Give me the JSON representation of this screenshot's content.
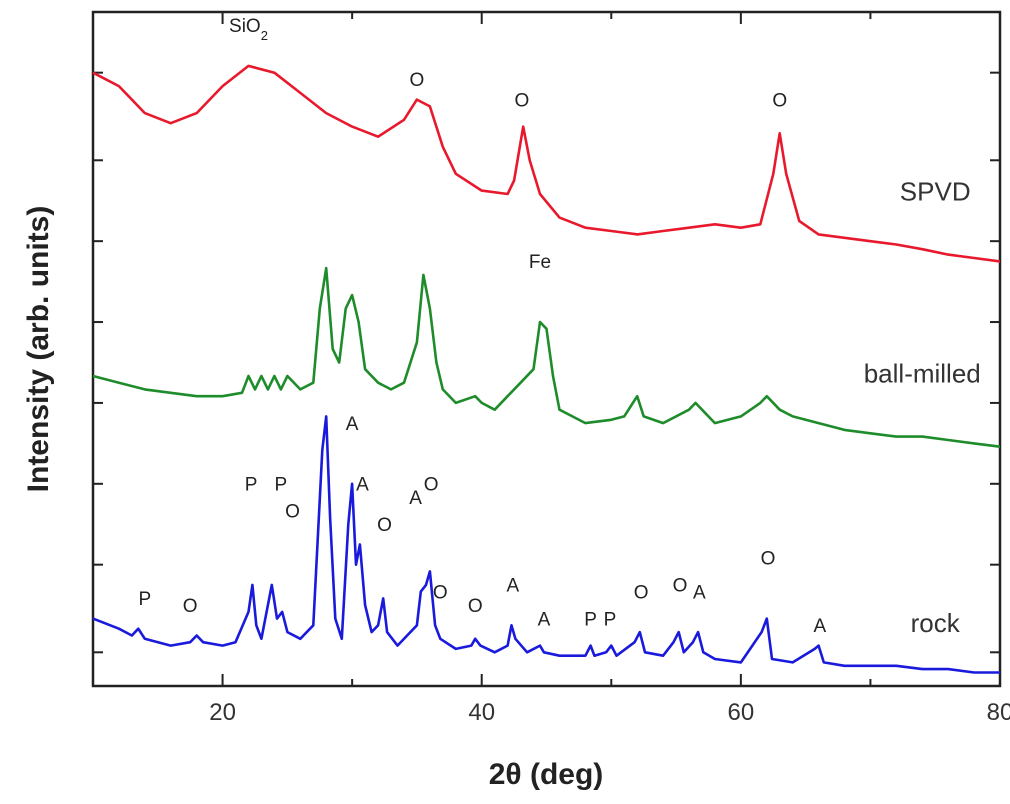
{
  "chart_data": {
    "type": "line",
    "xlabel": "2θ (deg)",
    "ylabel": "Intensity (arb. units)",
    "xlim": [
      10,
      80
    ],
    "ylim": [
      0,
      100
    ],
    "x_ticks": [
      20,
      40,
      60,
      80
    ],
    "x_tick_labels": [
      "20",
      "40",
      "60",
      "80"
    ],
    "minor_x_ticks": [
      10,
      30,
      50,
      70
    ],
    "y_tick_values": [
      5,
      18,
      30,
      42,
      54,
      66,
      78,
      91
    ],
    "grid": false,
    "legend": "none (series labelled inline on the right)",
    "series": [
      {
        "name": "SPVD",
        "color": "#e8192c",
        "label_pos": [
          75,
          72
        ],
        "points": [
          [
            10,
            91
          ],
          [
            12,
            89
          ],
          [
            14,
            85
          ],
          [
            16,
            83.5
          ],
          [
            18,
            85
          ],
          [
            20,
            89
          ],
          [
            22,
            92
          ],
          [
            24,
            91
          ],
          [
            26,
            88
          ],
          [
            28,
            85
          ],
          [
            30,
            83
          ],
          [
            32,
            81.5
          ],
          [
            34,
            84
          ],
          [
            35,
            87
          ],
          [
            36,
            86
          ],
          [
            37,
            80
          ],
          [
            38,
            76
          ],
          [
            40,
            73.5
          ],
          [
            42,
            73
          ],
          [
            42.5,
            75
          ],
          [
            43.2,
            83
          ],
          [
            43.7,
            78
          ],
          [
            44.5,
            73
          ],
          [
            46,
            69.5
          ],
          [
            48,
            68
          ],
          [
            50,
            67.5
          ],
          [
            52,
            67
          ],
          [
            54,
            67.5
          ],
          [
            56,
            68
          ],
          [
            58,
            68.5
          ],
          [
            60,
            68
          ],
          [
            61.5,
            68.5
          ],
          [
            62.5,
            76
          ],
          [
            63,
            82
          ],
          [
            63.5,
            76
          ],
          [
            64.5,
            69
          ],
          [
            66,
            67
          ],
          [
            68,
            66.5
          ],
          [
            70,
            66
          ],
          [
            72,
            65.5
          ],
          [
            74,
            64.8
          ],
          [
            76,
            64
          ],
          [
            78,
            63.5
          ],
          [
            80,
            63
          ]
        ]
      },
      {
        "name": "ball-milled",
        "color": "#1e8c2a",
        "label_pos": [
          74,
          45
        ],
        "points": [
          [
            10,
            46
          ],
          [
            12,
            45
          ],
          [
            14,
            44
          ],
          [
            16,
            43.5
          ],
          [
            18,
            43
          ],
          [
            20,
            43
          ],
          [
            21.5,
            43.5
          ],
          [
            22,
            46
          ],
          [
            22.5,
            44
          ],
          [
            23,
            46
          ],
          [
            23.5,
            44
          ],
          [
            24,
            46
          ],
          [
            24.5,
            44
          ],
          [
            25,
            46
          ],
          [
            26,
            44
          ],
          [
            27,
            45
          ],
          [
            27.5,
            56
          ],
          [
            28,
            62
          ],
          [
            28.5,
            50
          ],
          [
            29,
            48
          ],
          [
            29.5,
            56
          ],
          [
            30,
            58
          ],
          [
            30.5,
            54
          ],
          [
            31,
            47
          ],
          [
            32,
            45
          ],
          [
            33,
            44
          ],
          [
            34,
            45
          ],
          [
            35,
            51
          ],
          [
            35.5,
            61
          ],
          [
            36,
            56
          ],
          [
            36.5,
            48
          ],
          [
            37,
            44
          ],
          [
            38,
            42
          ],
          [
            39.5,
            43
          ],
          [
            40,
            42
          ],
          [
            41,
            41
          ],
          [
            42,
            43
          ],
          [
            43,
            45
          ],
          [
            44,
            47
          ],
          [
            44.5,
            54
          ],
          [
            45,
            53
          ],
          [
            45.5,
            46
          ],
          [
            46,
            41
          ],
          [
            47,
            40
          ],
          [
            48,
            39
          ],
          [
            50,
            39.5
          ],
          [
            51,
            40
          ],
          [
            52,
            43
          ],
          [
            52.5,
            40
          ],
          [
            54,
            39
          ],
          [
            56,
            41
          ],
          [
            56.5,
            42
          ],
          [
            57,
            41
          ],
          [
            58,
            39
          ],
          [
            60,
            40
          ],
          [
            61.5,
            42
          ],
          [
            62,
            43
          ],
          [
            63,
            41
          ],
          [
            64,
            40
          ],
          [
            66,
            39
          ],
          [
            68,
            38
          ],
          [
            70,
            37.5
          ],
          [
            72,
            37
          ],
          [
            74,
            37
          ],
          [
            76,
            36.5
          ],
          [
            78,
            36
          ],
          [
            80,
            35.5
          ]
        ]
      },
      {
        "name": "rock",
        "color": "#1a1adc",
        "label_pos": [
          75,
          8
        ],
        "points": [
          [
            10,
            10
          ],
          [
            12,
            8.5
          ],
          [
            13,
            7.5
          ],
          [
            13.5,
            8.5
          ],
          [
            14,
            7
          ],
          [
            16,
            6
          ],
          [
            17.5,
            6.5
          ],
          [
            18,
            7.5
          ],
          [
            18.5,
            6.5
          ],
          [
            20,
            6
          ],
          [
            21,
            6.5
          ],
          [
            22,
            11
          ],
          [
            22.3,
            15
          ],
          [
            22.6,
            9
          ],
          [
            23,
            7
          ],
          [
            23.4,
            11
          ],
          [
            23.8,
            15
          ],
          [
            24.2,
            10
          ],
          [
            24.6,
            11
          ],
          [
            25,
            8
          ],
          [
            26,
            7
          ],
          [
            27,
            9
          ],
          [
            27.7,
            35
          ],
          [
            28,
            40
          ],
          [
            28.3,
            25
          ],
          [
            28.7,
            10
          ],
          [
            29.2,
            7
          ],
          [
            29.7,
            24
          ],
          [
            30,
            30
          ],
          [
            30.3,
            18
          ],
          [
            30.6,
            21
          ],
          [
            31,
            12
          ],
          [
            31.5,
            8
          ],
          [
            32,
            9
          ],
          [
            32.4,
            13
          ],
          [
            32.7,
            8
          ],
          [
            33.5,
            6
          ],
          [
            35,
            9
          ],
          [
            35.3,
            14
          ],
          [
            35.7,
            15
          ],
          [
            36,
            17
          ],
          [
            36.4,
            9
          ],
          [
            36.8,
            7
          ],
          [
            38,
            5.5
          ],
          [
            39.2,
            6
          ],
          [
            39.5,
            7
          ],
          [
            39.9,
            6
          ],
          [
            41,
            5
          ],
          [
            42,
            6
          ],
          [
            42.3,
            9
          ],
          [
            42.6,
            7
          ],
          [
            43.5,
            5
          ],
          [
            44.5,
            6
          ],
          [
            44.8,
            5
          ],
          [
            46,
            4.5
          ],
          [
            48,
            4.5
          ],
          [
            48.4,
            6
          ],
          [
            48.7,
            4.5
          ],
          [
            49.6,
            5
          ],
          [
            50,
            6
          ],
          [
            50.4,
            4.5
          ],
          [
            51.8,
            6.5
          ],
          [
            52.2,
            8
          ],
          [
            52.6,
            5
          ],
          [
            54,
            4.5
          ],
          [
            54.8,
            6.5
          ],
          [
            55.2,
            8
          ],
          [
            55.6,
            5
          ],
          [
            56.3,
            6.5
          ],
          [
            56.7,
            8
          ],
          [
            57.1,
            5
          ],
          [
            58,
            4
          ],
          [
            60,
            3.5
          ],
          [
            61.6,
            8
          ],
          [
            62,
            10
          ],
          [
            62.4,
            4
          ],
          [
            64,
            3.5
          ],
          [
            65.7,
            5.5
          ],
          [
            66,
            6
          ],
          [
            66.4,
            3.5
          ],
          [
            68,
            3
          ],
          [
            70,
            3
          ],
          [
            72,
            3
          ],
          [
            74,
            2.5
          ],
          [
            76,
            2.5
          ],
          [
            78,
            2
          ],
          [
            80,
            2
          ]
        ]
      }
    ],
    "annotations": [
      {
        "text": "SiO",
        "sub": "2",
        "x": 22,
        "y": 97
      },
      {
        "text": "O",
        "x": 35,
        "y": 89
      },
      {
        "text": "O",
        "x": 43.1,
        "y": 86
      },
      {
        "text": "O",
        "x": 63,
        "y": 86
      },
      {
        "text": "Fe",
        "x": 44.5,
        "y": 62
      },
      {
        "text": "P",
        "x": 14,
        "y": 12
      },
      {
        "text": "O",
        "x": 17.5,
        "y": 11
      },
      {
        "text": "P",
        "x": 22.2,
        "y": 29
      },
      {
        "text": "P",
        "x": 24.5,
        "y": 29
      },
      {
        "text": "O",
        "x": 25.4,
        "y": 25
      },
      {
        "text": "A",
        "x": 30,
        "y": 38
      },
      {
        "text": "A",
        "x": 30.8,
        "y": 29
      },
      {
        "text": "O",
        "x": 32.5,
        "y": 23
      },
      {
        "text": "A",
        "x": 34.9,
        "y": 27
      },
      {
        "text": "O",
        "x": 36.1,
        "y": 29
      },
      {
        "text": "O",
        "x": 36.8,
        "y": 13
      },
      {
        "text": "O",
        "x": 39.5,
        "y": 11
      },
      {
        "text": "A",
        "x": 42.4,
        "y": 14
      },
      {
        "text": "A",
        "x": 44.8,
        "y": 9
      },
      {
        "text": "P",
        "x": 48.4,
        "y": 9
      },
      {
        "text": "P",
        "x": 49.9,
        "y": 9
      },
      {
        "text": "O",
        "x": 52.3,
        "y": 13
      },
      {
        "text": "O",
        "x": 55.3,
        "y": 14
      },
      {
        "text": "A",
        "x": 56.8,
        "y": 13
      },
      {
        "text": "O",
        "x": 62.1,
        "y": 18
      },
      {
        "text": "A",
        "x": 66.1,
        "y": 8
      }
    ]
  }
}
